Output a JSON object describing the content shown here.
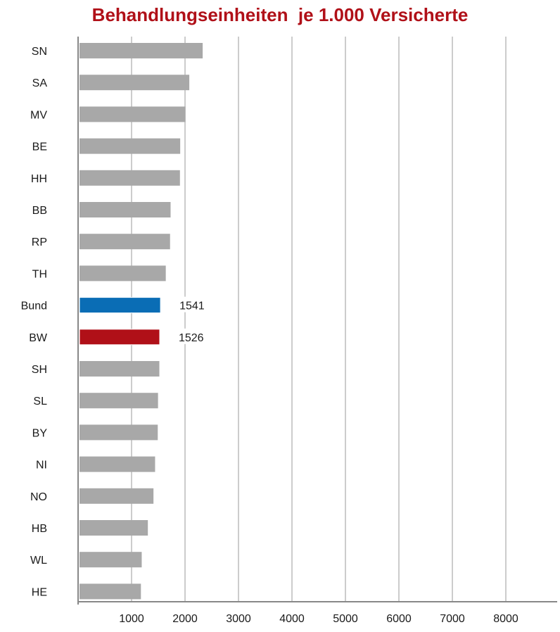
{
  "chart_data": {
    "type": "bar",
    "orientation": "horizontal",
    "title": "Behandlungseinheiten  je 1.000 Versicherte",
    "categories": [
      "SN",
      "SA",
      "MV",
      "BE",
      "HH",
      "BB",
      "RP",
      "TH",
      "Bund",
      "BW",
      "SH",
      "SL",
      "BY",
      "NI",
      "NO",
      "HB",
      "WL",
      "HE"
    ],
    "values": [
      2330,
      2080,
      2010,
      1910,
      1905,
      1730,
      1720,
      1640,
      1541,
      1526,
      1520,
      1495,
      1490,
      1440,
      1410,
      1305,
      1190,
      1175
    ],
    "xlim": [
      0,
      9000
    ],
    "xticks": [
      1000,
      2000,
      3000,
      4000,
      5000,
      6000,
      7000,
      8000
    ],
    "grid": true,
    "colors": {
      "default": "#a8a8a8",
      "highlight": {
        "Bund": "#0a6db5",
        "BW": "#b01018"
      },
      "title": "#b01018",
      "grid": "#999999",
      "axis": "#888888"
    },
    "data_labels": {
      "Bund": "1541",
      "BW": "1526"
    }
  }
}
